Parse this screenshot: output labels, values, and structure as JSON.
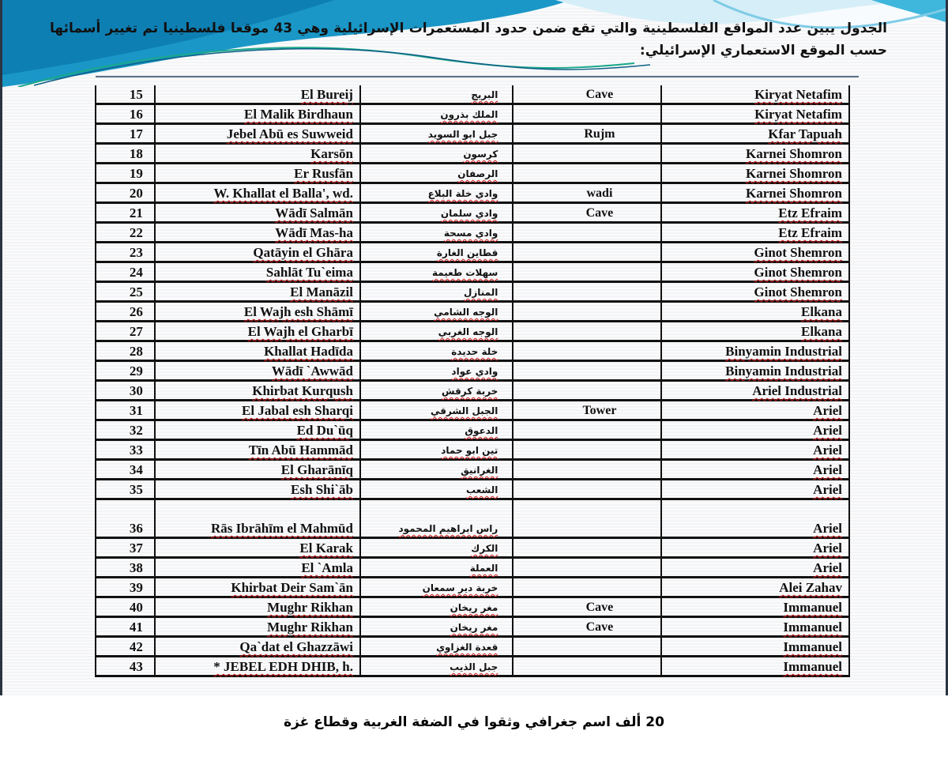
{
  "intro": "الجدول       يبين عدد المواقع الفلسطينية والتي تقع ضمن حدود المستعمرات الإسرائيلية وهي 43 موقعا فلسطينيا تم تغيير أسمائها حسب الموقع الاستعماري الإسرائيلي:",
  "rows": [
    {
      "num": "15",
      "en": "El Bureij",
      "ar": "البريج",
      "type": "Cave",
      "settlement": "Kiryat Netafim"
    },
    {
      "num": "16",
      "en": "El Malik Birdhaun",
      "ar": "الملك بذرون",
      "type": "",
      "settlement": "Kiryat Netafim"
    },
    {
      "num": "17",
      "en": "Jebel Abū es Suwweid",
      "ar": "جبل ابو السويد",
      "type": "Rujm",
      "settlement": "Kfar Tapuah"
    },
    {
      "num": "18",
      "en": "Karsōn",
      "ar": "كرسون",
      "type": "",
      "settlement": "Karnei Shomron"
    },
    {
      "num": "19",
      "en": "Er Rusfān",
      "ar": "الرصفان",
      "type": "",
      "settlement": "Karnei Shomron"
    },
    {
      "num": "20",
      "en": "W. Khallat el Balla', wd.",
      "ar": "وادي خلة البلاع",
      "type": "wadi",
      "settlement": "Karnei Shomron"
    },
    {
      "num": "21",
      "en": "Wādī Salmān",
      "ar": "وادي سلمان",
      "type": "Cave",
      "settlement": "Etz Efraim"
    },
    {
      "num": "22",
      "en": "Wādī Mas-ha",
      "ar": "وادي مسحة",
      "type": "",
      "settlement": "Etz Efraim"
    },
    {
      "num": "23",
      "en": "Qatāyin el Ghāra",
      "ar": "قطاين الغارة",
      "type": "",
      "settlement": "Ginot Shemron"
    },
    {
      "num": "24",
      "en": "Sahlāt Tu`eima",
      "ar": "سهلات طعيمة",
      "type": "",
      "settlement": "Ginot Shemron"
    },
    {
      "num": "25",
      "en": "El Manāzil",
      "ar": "المنازل",
      "type": "",
      "settlement": "Ginot Shemron"
    },
    {
      "num": "26",
      "en": "El Wajh esh Shāmī",
      "ar": "الوجه الشامي",
      "type": "",
      "settlement": "Elkana"
    },
    {
      "num": "27",
      "en": "El Wajh el Gharbī",
      "ar": "الوجه الغربي",
      "type": "",
      "settlement": "Elkana"
    },
    {
      "num": "28",
      "en": "Khallat Hadīda",
      "ar": "خلة حديدة",
      "type": "",
      "settlement": "Binyamin Industrial"
    },
    {
      "num": "29",
      "en": "Wādī `Awwād",
      "ar": "وادي عواد",
      "type": "",
      "settlement": "Binyamin Industrial"
    },
    {
      "num": "30",
      "en": "Khirbat Kurqush",
      "ar": "خربة كرقش",
      "type": "",
      "settlement": "Ariel Industrial"
    },
    {
      "num": "31",
      "en": "El Jabal esh Sharqi",
      "ar": "الجبل الشرقي",
      "type": "Tower",
      "settlement": "Ariel"
    },
    {
      "num": "32",
      "en": "Ed Du`ūq",
      "ar": "الدعوق",
      "type": "",
      "settlement": "Ariel"
    },
    {
      "num": "33",
      "en": "Tīn Abū Hammād",
      "ar": "تين ابو حماد",
      "type": "",
      "settlement": "Ariel"
    },
    {
      "num": "34",
      "en": "El Gharānīq",
      "ar": "الغرانيق",
      "type": "",
      "settlement": "Ariel"
    },
    {
      "num": "35",
      "en": "Esh Shi`āb",
      "ar": "الشعب",
      "type": "",
      "settlement": "Ariel"
    },
    {
      "num": "36",
      "en": "Rās Ibrāhīm el Mahmūd",
      "ar": "راس ابراهيم المحمود",
      "type": "",
      "settlement": "Ariel"
    },
    {
      "num": "37",
      "en": "El Karak",
      "ar": "الكرك",
      "type": "",
      "settlement": "Ariel"
    },
    {
      "num": "38",
      "en": "El `Amla",
      "ar": "العملة",
      "type": "",
      "settlement": "Ariel"
    },
    {
      "num": "39",
      "en": "Khirbat Deir Sam`ān",
      "ar": "خربة دير سمعان",
      "type": "",
      "settlement": "Alei Zahav"
    },
    {
      "num": "40",
      "en": "Mughr Rikhan",
      "ar": "مغر ريخان",
      "type": "Cave",
      "settlement": "Immanuel"
    },
    {
      "num": "41",
      "en": "Mughr Rikhan",
      "ar": "مغر ريخان",
      "type": "Cave",
      "settlement": "Immanuel"
    },
    {
      "num": "42",
      "en": "Qa`dat el Ghazzāwi",
      "ar": "قعدة الغزاوي",
      "type": "",
      "settlement": "Immanuel"
    },
    {
      "num": "43",
      "en": "* JEBEL EDH DHIB, h.",
      "ar": "جبل الذيب",
      "type": "",
      "settlement": "Immanuel"
    }
  ],
  "caption": "20 ألف اسم جغرافي وثقوا في الضفة الغربية وقطاع غزة",
  "colors": {
    "swoosh_dark": "#0e7fb3",
    "swoosh_light": "#3fb6dc",
    "swoosh_accent": "#1aa88a",
    "text": "#111111",
    "spellcheck": "#d21c1c"
  }
}
